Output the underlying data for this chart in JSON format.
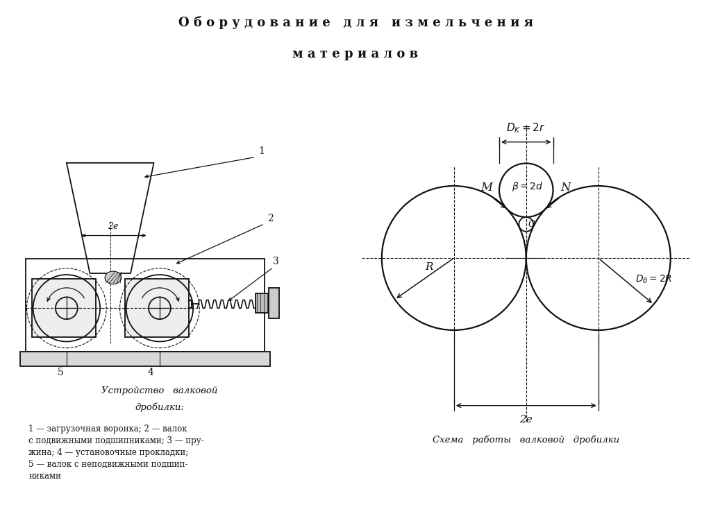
{
  "title_line1": "О б о р у д о в а н и е   д л я   и з м е л ь ч е н и я",
  "title_line2": "м а т е р и а л о в",
  "bg_color": "#ffffff",
  "line_color": "#111111",
  "caption_left_1": "Устройство   валковой",
  "caption_left_2": "дробилки:",
  "legend": "1 — загрузочная воронка; 2 — валок\nс подвижными подшипниками; 3 — пру-\nжина; 4 — установочные прокладки;\n5 — валок с неподвижными подшип-\nниками",
  "caption_right": "Схема   работы   валковой   дробилки"
}
